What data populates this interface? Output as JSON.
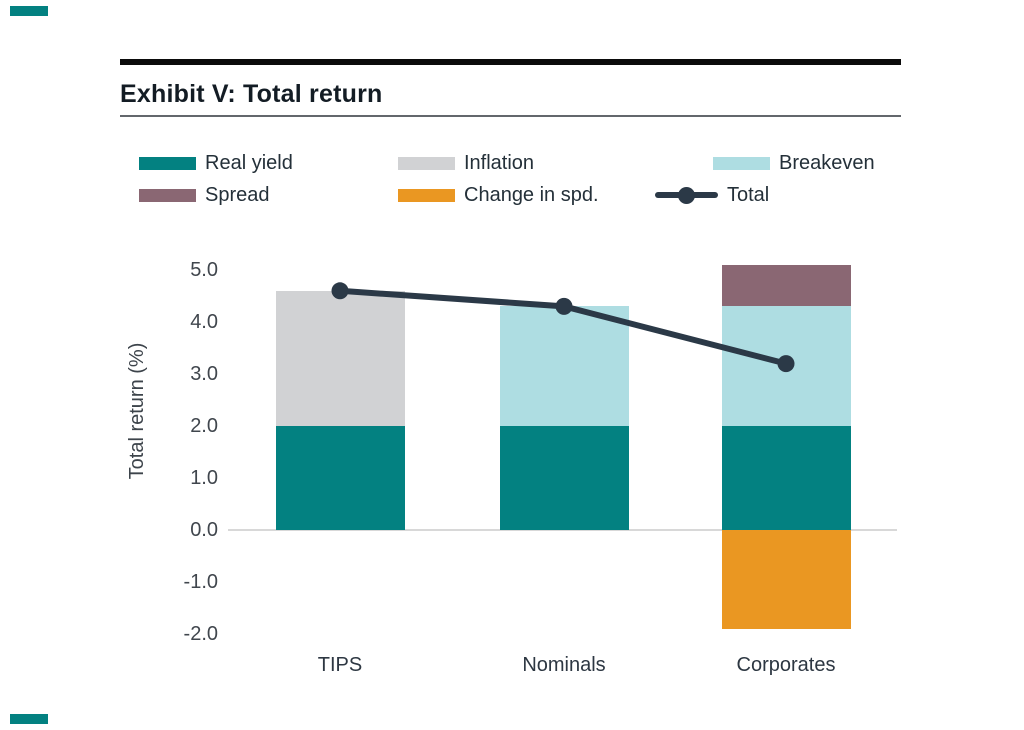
{
  "page": {
    "corner_mark_color": "#038181"
  },
  "header": {
    "title": "Exhibit V: Total return"
  },
  "legend": {
    "position": "top",
    "items": [
      {
        "label": "Real yield",
        "color": "#038181",
        "type": "swatch"
      },
      {
        "label": "Inflation",
        "color": "#d1d2d4",
        "type": "swatch"
      },
      {
        "label": "Breakeven",
        "color": "#aedde2",
        "type": "swatch"
      },
      {
        "label": "Spread",
        "color": "#8a6773",
        "type": "swatch"
      },
      {
        "label": "Change in spd.",
        "color": "#ea9722",
        "type": "swatch"
      },
      {
        "label": "Total",
        "color": "#2b3947",
        "type": "line-marker"
      }
    ]
  },
  "chart_data": {
    "type": "bar",
    "subtype": "stacked-bar-with-line",
    "title": "Exhibit V: Total return",
    "categories": [
      "TIPS",
      "Nominals",
      "Corporates"
    ],
    "series": [
      {
        "name": "Real yield",
        "color": "#038181",
        "values": [
          2.0,
          2.0,
          2.0
        ]
      },
      {
        "name": "Inflation",
        "color": "#d1d2d4",
        "values": [
          2.6,
          0,
          0
        ]
      },
      {
        "name": "Breakeven",
        "color": "#aedde2",
        "values": [
          0,
          2.3,
          2.3
        ]
      },
      {
        "name": "Spread",
        "color": "#8a6773",
        "values": [
          0,
          0,
          0.8
        ]
      },
      {
        "name": "Change in spd.",
        "color": "#ea9722",
        "values": [
          0,
          0,
          -1.9
        ]
      }
    ],
    "line_series": {
      "name": "Total",
      "color": "#2b3947",
      "values": [
        4.6,
        4.3,
        3.2
      ]
    },
    "stack_totals": {
      "positive_tops": [
        4.6,
        4.3,
        5.1
      ],
      "negative_bottoms": [
        0,
        0,
        -1.9
      ]
    },
    "xlabel": "",
    "ylabel": "Total return (%)",
    "ylim": [
      -2.0,
      5.0
    ],
    "ytick_labels": [
      "5.0",
      "4.0",
      "3.0",
      "2.0",
      "1.0",
      "0.0",
      "-1.0",
      "-2.0"
    ],
    "ytick_values": [
      5,
      4,
      3,
      2,
      1,
      0,
      -1,
      -2
    ],
    "grid": "zero-line-only",
    "legend_position": "top"
  }
}
